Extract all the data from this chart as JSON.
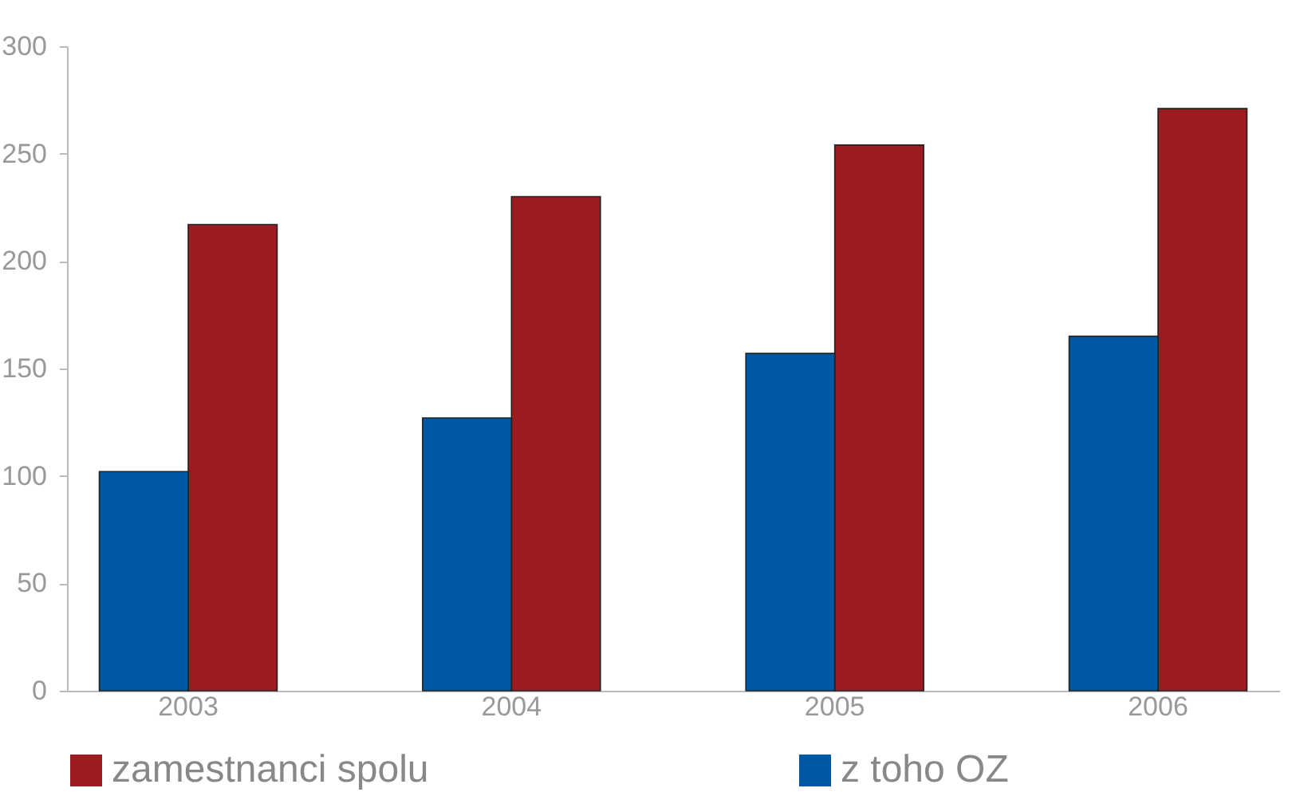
{
  "chart_data": {
    "type": "bar",
    "categories": [
      "2003",
      "2004",
      "2005",
      "2006"
    ],
    "series": [
      {
        "name": "zamestnanci spolu",
        "color": "#9b1c20",
        "values": [
          217,
          230,
          254,
          271
        ]
      },
      {
        "name": "z toho OZ",
        "color": "#0057a4",
        "values": [
          102,
          127,
          157,
          165
        ]
      }
    ],
    "ylim": [
      0,
      300
    ],
    "yticks": [
      0,
      50,
      100,
      150,
      200,
      250,
      300
    ],
    "grid": false,
    "legend": "bottom"
  }
}
